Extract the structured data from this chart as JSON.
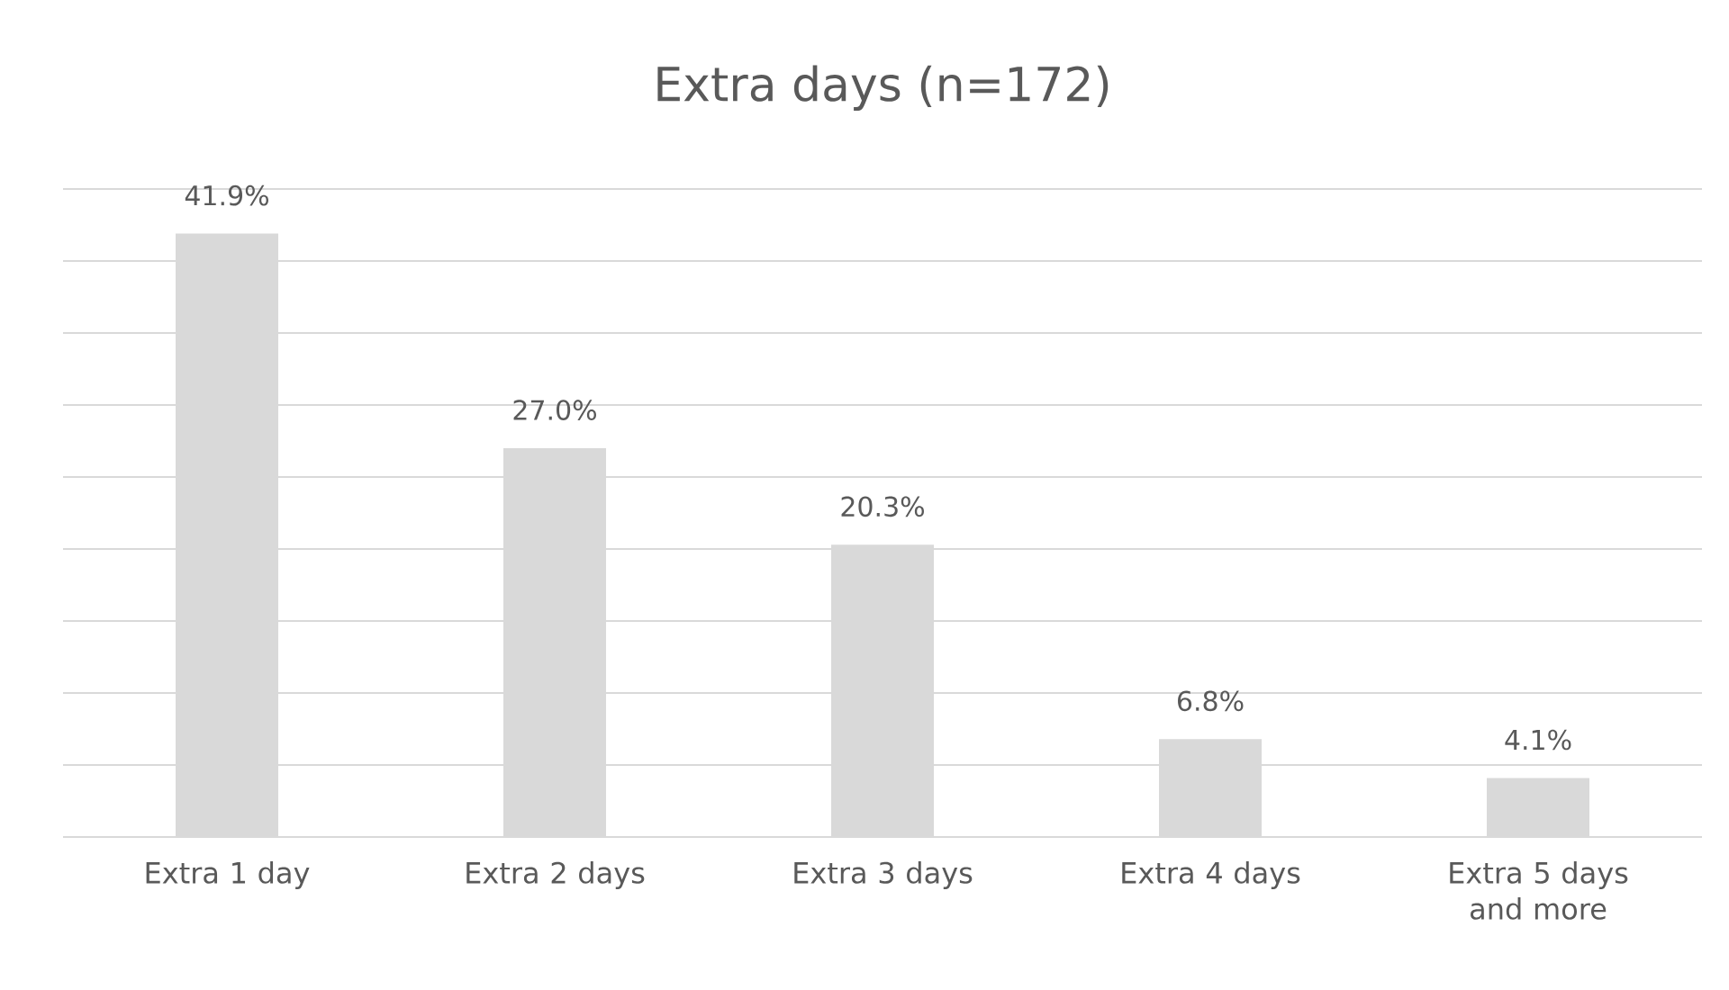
{
  "chart_data": {
    "type": "bar",
    "title": "Extra days (n=172)",
    "categories": [
      "Extra 1 day",
      "Extra 2 days",
      "Extra 3 days",
      "Extra 4 days",
      "Extra 5 days and more"
    ],
    "values": [
      41.9,
      27.0,
      20.3,
      6.8,
      4.1
    ],
    "value_labels": [
      "41.9%",
      "27.0%",
      "20.3%",
      "6.8%",
      "4.1%"
    ],
    "color": "#d9d9d9",
    "ylim": [
      0,
      45
    ],
    "yticks": [
      {
        "value": 0,
        "label": null
      },
      {
        "value": 5,
        "label": null
      },
      {
        "value": 10,
        "label": null
      },
      {
        "value": 15,
        "label": null
      },
      {
        "value": 20,
        "label": null
      },
      {
        "value": 25,
        "label": null
      },
      {
        "value": 30,
        "label": null
      },
      {
        "value": 35,
        "label": null
      },
      {
        "value": 40,
        "label": null
      },
      {
        "value": 45,
        "label": null
      }
    ],
    "grid": "y",
    "tick_labels": "x"
  }
}
